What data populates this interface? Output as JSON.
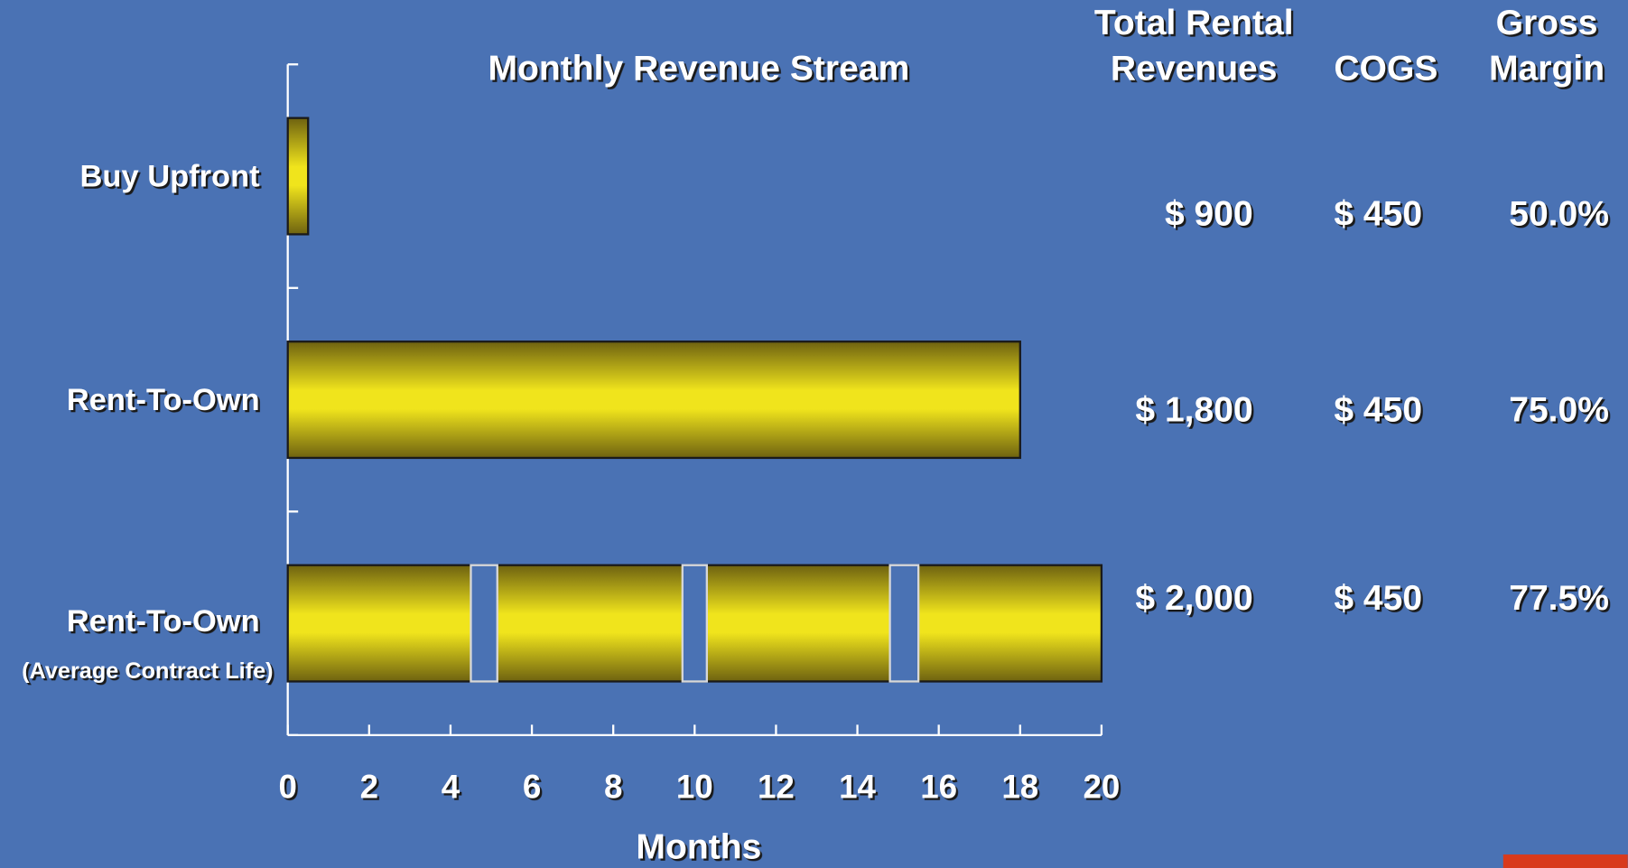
{
  "chart_data": {
    "type": "bar",
    "orientation": "horizontal",
    "title": "Monthly Revenue Stream",
    "x_label": "Months",
    "categories": [
      "Buy Upfront",
      "Rent-To-Own",
      "Rent-To-Own"
    ],
    "category_notes": [
      null,
      null,
      "(Average Contract Life)"
    ],
    "values": [
      0.5,
      18,
      20
    ],
    "gaps": [
      [],
      [],
      [
        [
          4.5,
          5.15
        ],
        [
          9.7,
          10.3
        ],
        [
          14.8,
          15.5
        ]
      ]
    ],
    "color": "#f0e41c",
    "xlim": [
      0,
      20
    ],
    "xticks": [
      0,
      2,
      4,
      6,
      8,
      10,
      12,
      14,
      16,
      18,
      20
    ],
    "table": {
      "columns": [
        [
          "Total Rental",
          "Revenues"
        ],
        [
          "COGS"
        ],
        [
          "Gross",
          "Margin"
        ]
      ],
      "rows": [
        [
          "$ 900",
          "$ 450",
          "50.0%"
        ],
        [
          "$ 1,800",
          "$ 450",
          "75.0%"
        ],
        [
          "$ 2,000",
          "$ 450",
          "77.5%"
        ]
      ]
    }
  }
}
